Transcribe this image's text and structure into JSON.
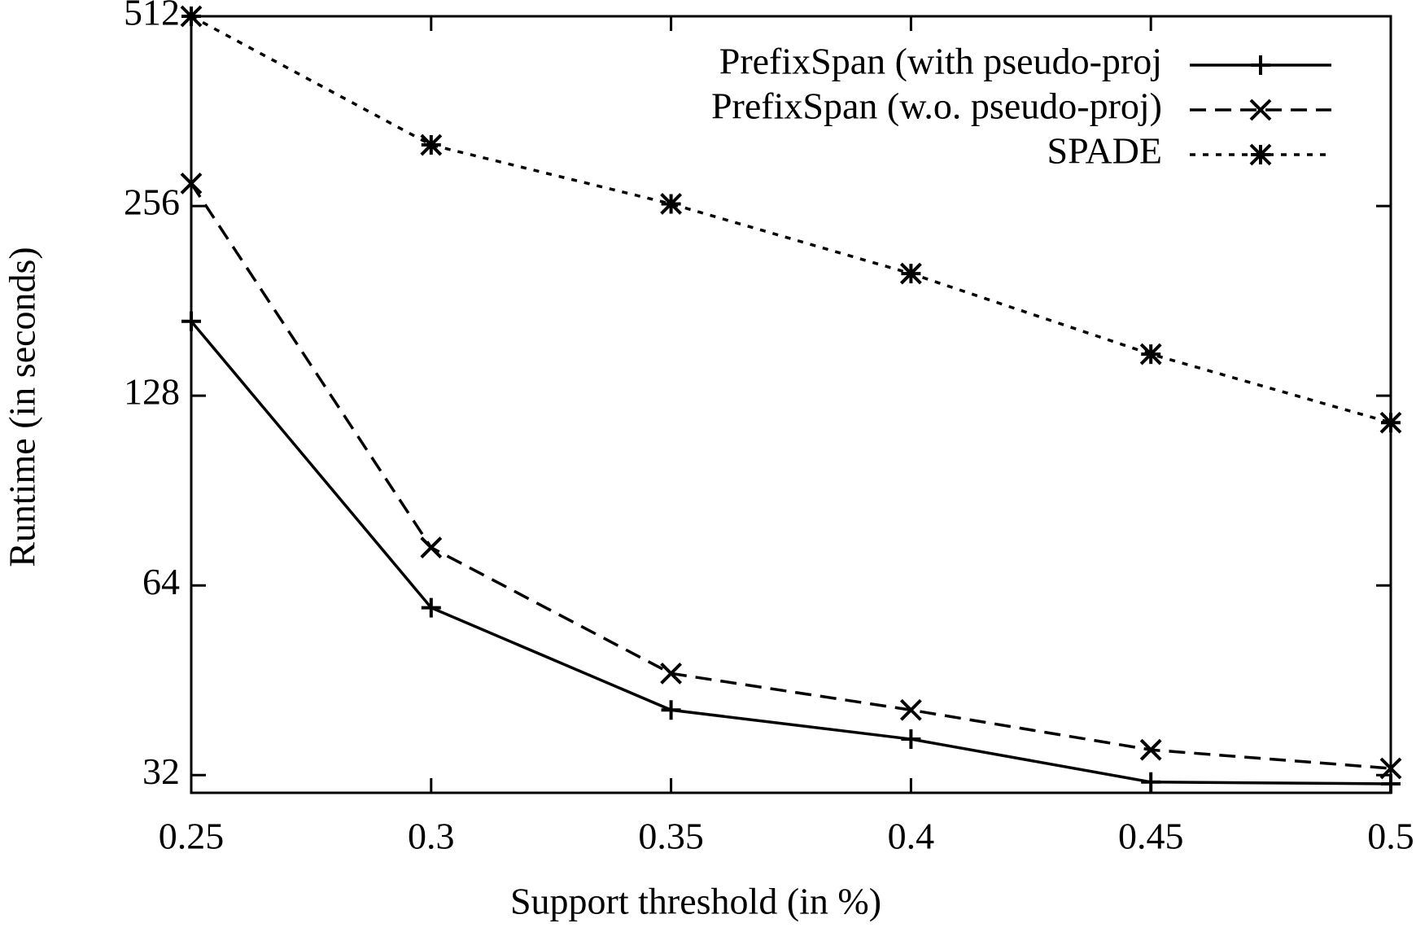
{
  "chart_data": {
    "type": "line",
    "x_label": "Support threshold (in %)",
    "y_label": "Runtime (in seconds)",
    "log_y": true,
    "log_base": 2,
    "x": [
      0.25,
      0.3,
      0.35,
      0.4,
      0.45,
      0.5
    ],
    "xlim": [
      0.25,
      0.5
    ],
    "xticks": [
      0.25,
      0.3,
      0.35,
      0.4,
      0.45,
      0.5
    ],
    "ylim": [
      30,
      512
    ],
    "yticks": [
      32,
      64,
      128,
      256,
      512
    ],
    "legend": "top-right",
    "series": [
      {
        "name": "PrefixSpan (with pseudo-proj",
        "color": "#000000",
        "line_style": "solid",
        "marker": "plus",
        "values": [
          168,
          59,
          40.6,
          36.5,
          31.2,
          31
        ]
      },
      {
        "name": "PrefixSpan (w.o. pseudo-proj)",
        "color": "#000000",
        "line_style": "dashed",
        "marker": "cross",
        "values": [
          278,
          73.5,
          46.4,
          40.6,
          35.1,
          32.8
        ]
      },
      {
        "name": "SPADE",
        "color": "#000000",
        "line_style": "dotted",
        "marker": "star",
        "values": [
          512,
          320,
          258,
          200,
          149,
          116
        ]
      }
    ]
  }
}
